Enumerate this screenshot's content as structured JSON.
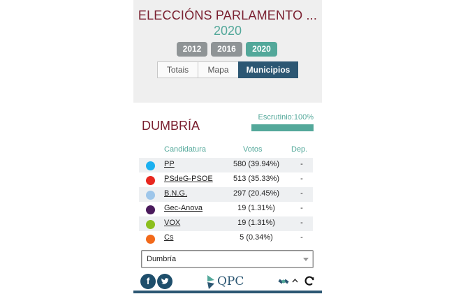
{
  "header": {
    "title": "ELECCIÓNS PARLAMENTO ...",
    "selected_year": "2020",
    "years": [
      {
        "label": "2012",
        "active": false
      },
      {
        "label": "2016",
        "active": false
      },
      {
        "label": "2020",
        "active": true
      }
    ],
    "tabs": [
      {
        "label": "Totais",
        "active": false
      },
      {
        "label": "Mapa",
        "active": false
      },
      {
        "label": "Municipios",
        "active": true
      }
    ]
  },
  "scrutiny": {
    "label": "Escrutinio:100%",
    "percent": 100
  },
  "municipality": "DUMBRÍA",
  "table": {
    "headers": {
      "party": "Candidatura",
      "votes": "Votos",
      "seats": "Dep."
    },
    "rows": [
      {
        "party": "PP",
        "votes": "580 (39.94%)",
        "seats": "-",
        "color": "#1bb0f0"
      },
      {
        "party": "PSdeG-PSOE",
        "votes": "513 (35.33%)",
        "seats": "-",
        "color": "#e8271f"
      },
      {
        "party": "B.N.G.",
        "votes": "297 (20.45%)",
        "seats": "-",
        "color": "#9ec6ea"
      },
      {
        "party": "Gec-Anova",
        "votes": "19 (1.31%)",
        "seats": "-",
        "color": "#4a1a5c"
      },
      {
        "party": "VOX",
        "votes": "19 (1.31%)",
        "seats": "-",
        "color": "#8cbf1e"
      },
      {
        "party": "Cs",
        "votes": "5 (0.34%)",
        "seats": "-",
        "color": "#f2691a"
      }
    ]
  },
  "select": {
    "value": "Dumbría"
  },
  "footer": {
    "facebook_icon": "f",
    "twitter_icon": "twitter-bird",
    "logo_text": "QPC",
    "icons": [
      "satellite-icon",
      "chevron-up-icon",
      "refresh-icon"
    ]
  }
}
